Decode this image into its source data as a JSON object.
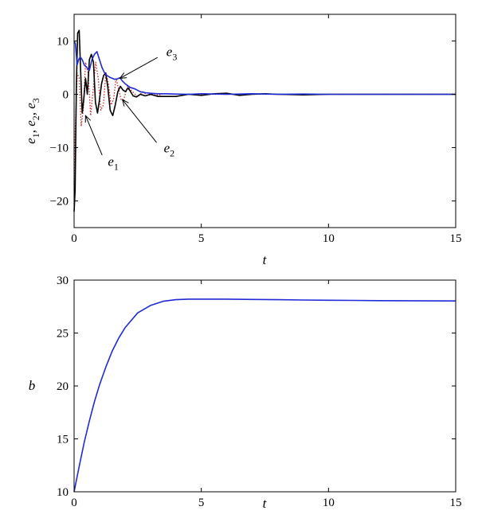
{
  "chart_data": [
    {
      "type": "line",
      "xlabel": "t",
      "ylabel": {
        "base": "e",
        "subs": [
          "1",
          "2",
          "3"
        ],
        "sep": ", "
      },
      "xlim": [
        0,
        15
      ],
      "ylim": [
        -25,
        15
      ],
      "xticks": [
        "0",
        "5",
        "10",
        "15"
      ],
      "yticks": [
        "10",
        "0",
        "−10",
        "−20"
      ],
      "grid": false,
      "series": [
        {
          "name": "e1",
          "color": "#cc2222",
          "style": "dotted",
          "x": [
            0,
            0.05,
            0.12,
            0.2,
            0.28,
            0.36,
            0.45,
            0.55,
            0.65,
            0.75,
            0.85,
            0.95,
            1.05,
            1.15,
            1.25,
            1.35,
            1.45,
            1.55,
            1.65,
            1.75,
            1.85,
            1.95,
            2.1,
            2.3,
            2.5,
            2.7,
            2.9,
            3.1,
            3.3,
            3.5,
            4,
            5,
            6,
            7,
            8,
            9,
            10,
            11,
            12,
            13,
            14,
            15
          ],
          "y": [
            -17,
            -6,
            4,
            3,
            -6,
            -3,
            6,
            4,
            -4,
            1,
            6,
            3,
            -3,
            -2,
            4,
            2,
            -2,
            -1,
            3,
            1,
            -1,
            -1,
            1.5,
            0.5,
            -0.5,
            0.5,
            -0.3,
            0.2,
            -0.2,
            0.1,
            0,
            0,
            0,
            0,
            0,
            0,
            0,
            0,
            0,
            0,
            0,
            0
          ]
        },
        {
          "name": "e2",
          "color": "#000000",
          "style": "solid",
          "x": [
            0,
            0.04,
            0.09,
            0.14,
            0.2,
            0.26,
            0.32,
            0.38,
            0.45,
            0.52,
            0.6,
            0.68,
            0.76,
            0.84,
            0.92,
            1.0,
            1.08,
            1.16,
            1.24,
            1.32,
            1.42,
            1.52,
            1.62,
            1.72,
            1.82,
            1.92,
            2.02,
            2.12,
            2.22,
            2.32,
            2.45,
            2.6,
            2.8,
            3.0,
            3.3,
            3.6,
            4.0,
            4.5,
            5.0,
            5.5,
            6.0,
            6.5,
            7.0,
            7.5,
            8.0,
            9.0,
            10.0,
            11.0,
            12.0,
            13.0,
            14.0,
            15.0
          ],
          "y": [
            -22,
            -18,
            2,
            11.5,
            12,
            4,
            -3.5,
            -1,
            3,
            0,
            6.5,
            7.5,
            6,
            -1.5,
            -3.5,
            -1,
            2,
            3.5,
            4,
            1.5,
            -3,
            -4,
            -2,
            0.5,
            1.5,
            0.8,
            0.5,
            1.2,
            0.5,
            -0.3,
            -0.5,
            0,
            -0.3,
            0,
            -0.4,
            -0.4,
            -0.4,
            0,
            -0.2,
            0.1,
            0.2,
            -0.2,
            0,
            0.1,
            0,
            -0.1,
            0,
            0,
            0,
            0,
            0,
            0
          ]
        },
        {
          "name": "e3",
          "color": "#1f2bd6",
          "style": "solid",
          "x": [
            0,
            0.05,
            0.12,
            0.18,
            0.24,
            0.32,
            0.4,
            0.5,
            0.6,
            0.7,
            0.8,
            0.9,
            1.0,
            1.1,
            1.2,
            1.3,
            1.4,
            1.5,
            1.6,
            1.7,
            1.8,
            1.9,
            2.0,
            2.2,
            2.4,
            2.6,
            2.8,
            3.0,
            3.3,
            3.6,
            4.0,
            4.5,
            5.0,
            6.0,
            7.0,
            8.0,
            9.0,
            10.0,
            11.0,
            12.0,
            13.0,
            14.0,
            15.0
          ],
          "y": [
            10,
            9.5,
            5.5,
            6.5,
            7,
            6.5,
            5.5,
            5,
            4.5,
            6.5,
            7.5,
            8,
            6.5,
            5,
            4,
            3.5,
            3.2,
            3,
            2.8,
            2.9,
            3.1,
            2.5,
            2,
            1.3,
            1.0,
            0.5,
            0.3,
            0.2,
            0.1,
            0.1,
            0.05,
            0,
            0.1,
            0,
            0.1,
            0,
            0.05,
            0,
            0,
            0,
            0,
            0,
            0
          ]
        }
      ],
      "annotations": [
        {
          "label": "e",
          "sub": "3",
          "x": 3.5,
          "y": 7.5,
          "arrow_to": [
            1.8,
            3
          ]
        },
        {
          "label": "e",
          "sub": "2",
          "x": 3.4,
          "y": -10,
          "arrow_to": [
            1.9,
            -1
          ]
        },
        {
          "label": "e",
          "sub": "1",
          "x": 1.2,
          "y": -12.5,
          "arrow_to": [
            0.45,
            -4
          ]
        }
      ]
    },
    {
      "type": "line",
      "xlabel": "t",
      "ylabel": "b",
      "xlim": [
        0,
        15
      ],
      "ylim": [
        10,
        30
      ],
      "xticks": [
        "0",
        "5",
        "10",
        "15"
      ],
      "yticks": [
        "30",
        "25",
        "20",
        "15",
        "10"
      ],
      "grid": false,
      "series": [
        {
          "name": "b",
          "color": "#1f2bd6",
          "style": "solid",
          "x": [
            0,
            0.1,
            0.2,
            0.4,
            0.6,
            0.8,
            1.0,
            1.25,
            1.5,
            1.75,
            2.0,
            2.5,
            3.0,
            3.5,
            4.0,
            4.5,
            5.0,
            6.0,
            7.0,
            8.0,
            9.0,
            10.0,
            11.0,
            12.0,
            13.0,
            14.0,
            15.0
          ],
          "y": [
            10,
            11.2,
            12.4,
            14.7,
            16.7,
            18.5,
            20.1,
            21.8,
            23.3,
            24.5,
            25.5,
            26.9,
            27.6,
            28.0,
            28.15,
            28.2,
            28.2,
            28.2,
            28.17,
            28.15,
            28.12,
            28.1,
            28.08,
            28.06,
            28.05,
            28.04,
            28.03
          ]
        }
      ]
    }
  ]
}
